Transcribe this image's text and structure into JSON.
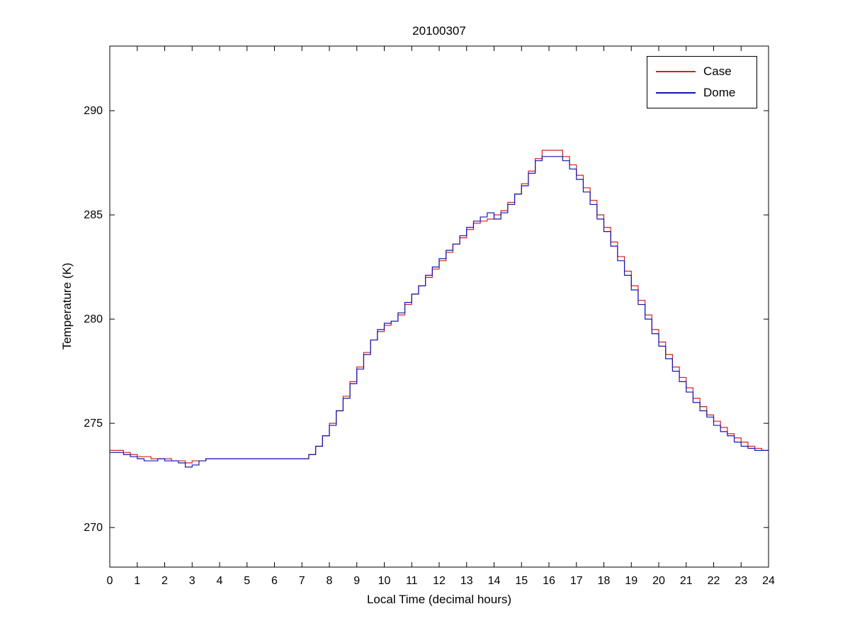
{
  "figure": {
    "title": "20100307",
    "xlabel": "Local Time (decimal hours)",
    "ylabel": "Temperature (K)"
  },
  "chart_data": {
    "type": "line",
    "title": "20100307",
    "xlabel": "Local Time (decimal hours)",
    "ylabel": "Temperature (K)",
    "xlim": [
      0,
      24
    ],
    "ylim": [
      268.1,
      293.1
    ],
    "xticks": [
      0,
      1,
      2,
      3,
      4,
      5,
      6,
      7,
      8,
      9,
      10,
      11,
      12,
      13,
      14,
      15,
      16,
      17,
      18,
      19,
      20,
      21,
      22,
      23,
      24
    ],
    "yticks": [
      270,
      275,
      280,
      285,
      290
    ],
    "grid": false,
    "legend_position": "top-right",
    "step_rendering": true,
    "x": [
      0.0,
      0.25,
      0.5,
      0.75,
      1.0,
      1.25,
      1.5,
      1.75,
      2.0,
      2.25,
      2.5,
      2.75,
      3.0,
      3.25,
      3.5,
      3.75,
      4.0,
      4.25,
      4.5,
      4.75,
      5.0,
      5.25,
      5.5,
      5.75,
      6.0,
      6.25,
      6.5,
      6.75,
      7.0,
      7.25,
      7.5,
      7.75,
      8.0,
      8.25,
      8.5,
      8.75,
      9.0,
      9.25,
      9.5,
      9.75,
      10.0,
      10.25,
      10.5,
      10.75,
      11.0,
      11.25,
      11.5,
      11.75,
      12.0,
      12.25,
      12.5,
      12.75,
      13.0,
      13.25,
      13.5,
      13.75,
      14.0,
      14.25,
      14.5,
      14.75,
      15.0,
      15.25,
      15.5,
      15.75,
      16.0,
      16.25,
      16.5,
      16.75,
      17.0,
      17.25,
      17.5,
      17.75,
      18.0,
      18.25,
      18.5,
      18.75,
      19.0,
      19.25,
      19.5,
      19.75,
      20.0,
      20.25,
      20.5,
      20.75,
      21.0,
      21.25,
      21.5,
      21.75,
      22.0,
      22.25,
      22.5,
      22.75,
      23.0,
      23.25,
      23.5,
      23.75,
      24.0
    ],
    "series": [
      {
        "name": "Case",
        "color": "#d42020",
        "values": [
          273.7,
          273.7,
          273.6,
          273.5,
          273.4,
          273.4,
          273.3,
          273.3,
          273.3,
          273.2,
          273.2,
          273.1,
          273.2,
          273.2,
          273.3,
          273.3,
          273.3,
          273.3,
          273.3,
          273.3,
          273.3,
          273.3,
          273.3,
          273.3,
          273.3,
          273.3,
          273.3,
          273.3,
          273.3,
          273.5,
          273.9,
          274.4,
          275.0,
          275.6,
          276.3,
          277.0,
          277.7,
          278.4,
          279.0,
          279.4,
          279.7,
          279.9,
          280.2,
          280.7,
          281.2,
          281.6,
          282.0,
          282.4,
          282.8,
          283.2,
          283.6,
          283.9,
          284.3,
          284.6,
          284.7,
          284.8,
          285.0,
          285.2,
          285.6,
          286.0,
          286.5,
          287.1,
          287.7,
          288.1,
          288.1,
          288.1,
          287.8,
          287.4,
          286.9,
          286.3,
          285.7,
          285.0,
          284.4,
          283.7,
          283.0,
          282.3,
          281.6,
          280.9,
          280.2,
          279.5,
          278.9,
          278.3,
          277.7,
          277.2,
          276.7,
          276.2,
          275.8,
          275.4,
          275.1,
          274.8,
          274.5,
          274.3,
          274.1,
          273.9,
          273.8,
          273.7,
          273.7
        ]
      },
      {
        "name": "Dome",
        "color": "#1515b4",
        "values": [
          273.6,
          273.6,
          273.5,
          273.4,
          273.3,
          273.2,
          273.2,
          273.3,
          273.2,
          273.2,
          273.1,
          272.9,
          273.0,
          273.2,
          273.3,
          273.3,
          273.3,
          273.3,
          273.3,
          273.3,
          273.3,
          273.3,
          273.3,
          273.3,
          273.3,
          273.3,
          273.3,
          273.3,
          273.3,
          273.5,
          273.9,
          274.4,
          274.9,
          275.6,
          276.2,
          276.9,
          277.6,
          278.3,
          279.0,
          279.5,
          279.8,
          279.9,
          280.3,
          280.8,
          281.2,
          281.6,
          282.1,
          282.5,
          282.9,
          283.3,
          283.6,
          284.0,
          284.4,
          284.7,
          284.9,
          285.1,
          284.8,
          285.1,
          285.5,
          286.0,
          286.4,
          287.0,
          287.6,
          287.8,
          287.8,
          287.8,
          287.6,
          287.2,
          286.7,
          286.1,
          285.5,
          284.8,
          284.2,
          283.5,
          282.8,
          282.1,
          281.4,
          280.7,
          280.0,
          279.3,
          278.7,
          278.1,
          277.5,
          277.0,
          276.5,
          276.0,
          275.6,
          275.3,
          274.9,
          274.6,
          274.4,
          274.1,
          273.9,
          273.8,
          273.7,
          273.7,
          273.7
        ]
      }
    ]
  }
}
